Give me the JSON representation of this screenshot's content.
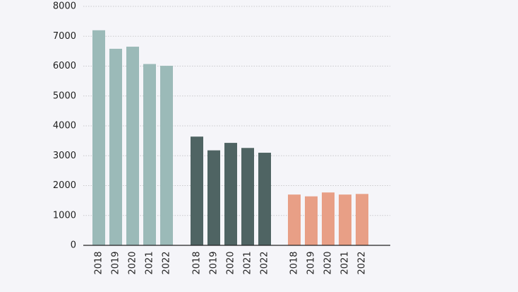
{
  "chart_data": {
    "type": "bar",
    "title": "",
    "xlabel": "",
    "ylabel": "",
    "ylim": [
      0,
      8000
    ],
    "yticks": [
      0,
      1000,
      2000,
      3000,
      4000,
      5000,
      6000,
      7000,
      8000
    ],
    "grid": true,
    "legend": "none",
    "groups": [
      {
        "color": "#9bbab8",
        "categories": [
          "2018",
          "2019",
          "2020",
          "2021",
          "2022"
        ],
        "values": [
          7200,
          6580,
          6650,
          6070,
          6010
        ]
      },
      {
        "color": "#4f6463",
        "categories": [
          "2018",
          "2019",
          "2020",
          "2021",
          "2022"
        ],
        "values": [
          3640,
          3180,
          3430,
          3260,
          3100
        ]
      },
      {
        "color": "#e89f86",
        "categories": [
          "2018",
          "2019",
          "2020",
          "2021",
          "2022"
        ],
        "values": [
          1700,
          1640,
          1770,
          1700,
          1720
        ]
      }
    ],
    "colors": {
      "grid": "#c9c9cc",
      "axis": "#222222",
      "text": "#1f1f1f"
    }
  }
}
